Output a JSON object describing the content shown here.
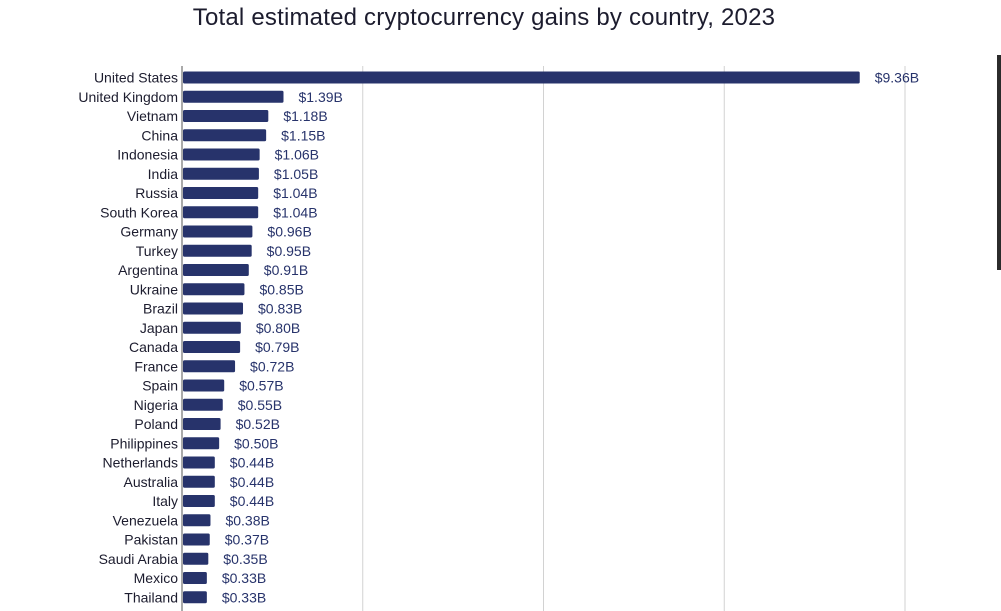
{
  "chart_data": {
    "type": "bar",
    "orientation": "horizontal",
    "title": "Total estimated cryptocurrency gains by country, 2023",
    "xlabel": "",
    "ylabel": "",
    "grid": true,
    "xlim": [
      0,
      10
    ],
    "colors": {
      "bar": "#27336b",
      "label": "#27336b",
      "category": "#1c1c2e",
      "grid": "#d2d2d2",
      "axis": "#555555"
    },
    "categories": [
      "United States",
      "United Kingdom",
      "Vietnam",
      "China",
      "Indonesia",
      "India",
      "Russia",
      "South Korea",
      "Germany",
      "Turkey",
      "Argentina",
      "Ukraine",
      "Brazil",
      "Japan",
      "Canada",
      "France",
      "Spain",
      "Nigeria",
      "Poland",
      "Philippines",
      "Netherlands",
      "Australia",
      "Italy",
      "Venezuela",
      "Pakistan",
      "Saudi Arabia",
      "Mexico",
      "Thailand"
    ],
    "values": [
      9.36,
      1.39,
      1.18,
      1.15,
      1.06,
      1.05,
      1.04,
      1.04,
      0.96,
      0.95,
      0.91,
      0.85,
      0.83,
      0.8,
      0.79,
      0.72,
      0.57,
      0.55,
      0.52,
      0.5,
      0.44,
      0.44,
      0.44,
      0.38,
      0.37,
      0.35,
      0.33,
      0.33
    ],
    "data_labels": [
      "$9.36B",
      "$1.39B",
      "$1.18B",
      "$1.15B",
      "$1.06B",
      "$1.05B",
      "$1.04B",
      "$1.04B",
      "$0.96B",
      "$0.95B",
      "$0.91B",
      "$0.85B",
      "$0.83B",
      "$0.80B",
      "$0.79B",
      "$0.72B",
      "$0.57B",
      "$0.55B",
      "$0.52B",
      "$0.50B",
      "$0.44B",
      "$0.44B",
      "$0.44B",
      "$0.38B",
      "$0.37B",
      "$0.35B",
      "$0.33B",
      "$0.33B"
    ]
  }
}
